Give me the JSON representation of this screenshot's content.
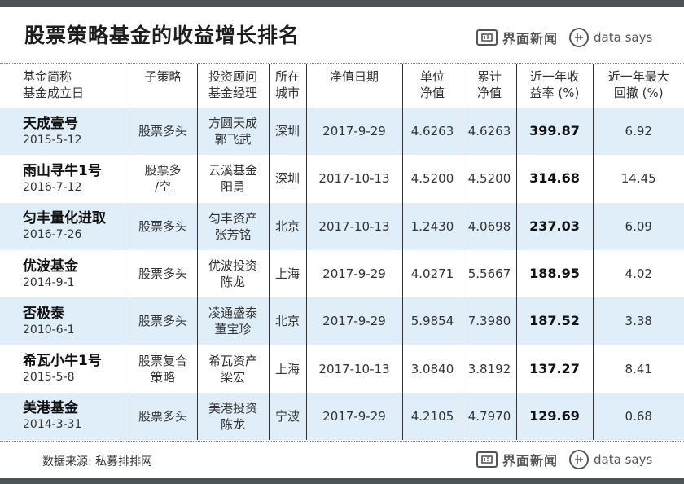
{
  "title": "股票策略基金的收益增长排名",
  "brand": {
    "name": "界面新闻",
    "ds": "data says"
  },
  "headers": [
    [
      "基金简称",
      "基金成立日"
    ],
    [
      "子策略"
    ],
    [
      "投资顾问",
      "基金经理"
    ],
    [
      "所在",
      "城市"
    ],
    [
      "净值日期"
    ],
    [
      "单位",
      "净值"
    ],
    [
      "累计",
      "净值"
    ],
    [
      "近一年收",
      "益率 (%)"
    ],
    [
      "近一年最大",
      "回撤 (%)"
    ]
  ],
  "rows": [
    {
      "name": "天成壹号",
      "date": "2015-5-12",
      "strategy": [
        "股票多头"
      ],
      "advisor": [
        "方圆天成",
        "郭飞武"
      ],
      "city": "深圳",
      "nav_date": "2017-9-29",
      "unit_nav": "4.6263",
      "cum_nav": "4.6263",
      "return": "399.87",
      "drawdown": "6.92"
    },
    {
      "name": "雨山寻牛1号",
      "date": "2016-7-12",
      "strategy": [
        "股票多",
        "/空"
      ],
      "advisor": [
        "云溪基金",
        "阳勇"
      ],
      "city": "深圳",
      "nav_date": "2017-10-13",
      "unit_nav": "4.5200",
      "cum_nav": "4.5200",
      "return": "314.68",
      "drawdown": "14.45"
    },
    {
      "name": "匀丰量化进取",
      "date": "2016-7-26",
      "strategy": [
        "股票多头"
      ],
      "advisor": [
        "匀丰资产",
        "张芳铭"
      ],
      "city": "北京",
      "nav_date": "2017-10-13",
      "unit_nav": "1.2430",
      "cum_nav": "4.0698",
      "return": "237.03",
      "drawdown": "6.09"
    },
    {
      "name": "优波基金",
      "date": "2014-9-1",
      "strategy": [
        "股票多头"
      ],
      "advisor": [
        "优波投资",
        "陈龙"
      ],
      "city": "上海",
      "nav_date": "2017-9-29",
      "unit_nav": "4.0271",
      "cum_nav": "5.5667",
      "return": "188.95",
      "drawdown": "4.02"
    },
    {
      "name": "否极泰",
      "date": "2010-6-1",
      "strategy": [
        "股票多头"
      ],
      "advisor": [
        "凌通盛泰",
        "董宝珍"
      ],
      "city": "北京",
      "nav_date": "2017-9-29",
      "unit_nav": "5.9854",
      "cum_nav": "7.3980",
      "return": "187.52",
      "drawdown": "3.38"
    },
    {
      "name": "希瓦小牛1号",
      "date": "2015-5-8",
      "strategy": [
        "股票复合",
        "策略"
      ],
      "advisor": [
        "希瓦资产",
        "梁宏"
      ],
      "city": "上海",
      "nav_date": "2017-10-13",
      "unit_nav": "3.0840",
      "cum_nav": "3.8192",
      "return": "137.27",
      "drawdown": "8.41"
    },
    {
      "name": "美港基金",
      "date": "2014-3-31",
      "strategy": [
        "股票多头"
      ],
      "advisor": [
        "美港投资",
        "陈龙"
      ],
      "city": "宁波",
      "nav_date": "2017-9-29",
      "unit_nav": "4.2105",
      "cum_nav": "4.7970",
      "return": "129.69",
      "drawdown": "0.68"
    }
  ],
  "source": "数据来源: 私募排排网",
  "colors": {
    "bar": "#4d5457",
    "shade": "#dfeef8"
  }
}
